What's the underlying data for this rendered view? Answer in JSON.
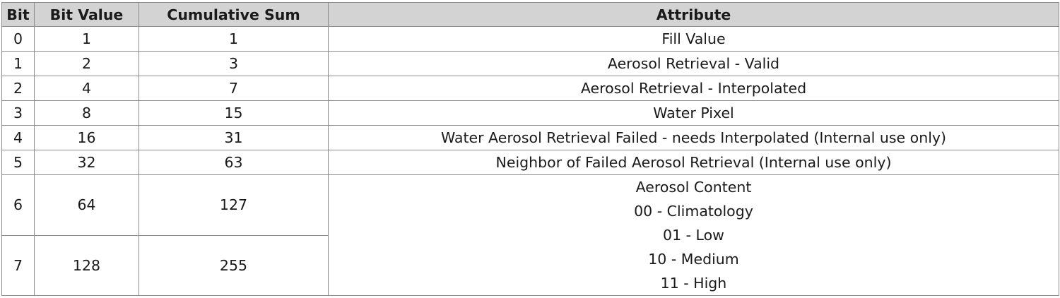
{
  "headers": [
    "Bit",
    "Bit Value",
    "Cumulative Sum",
    "Attribute"
  ],
  "rows": [
    {
      "bit": "0",
      "value": "1",
      "sum": "1",
      "attribute": "Fill Value"
    },
    {
      "bit": "1",
      "value": "2",
      "sum": "3",
      "attribute": "Aerosol Retrieval - Valid"
    },
    {
      "bit": "2",
      "value": "4",
      "sum": "7",
      "attribute": "Aerosol Retrieval - Interpolated"
    },
    {
      "bit": "3",
      "value": "8",
      "sum": "15",
      "attribute": "Water Pixel"
    },
    {
      "bit": "4",
      "value": "16",
      "sum": "31",
      "attribute": "Water Aerosol Retrieval Failed - needs Interpolated (Internal use only)"
    },
    {
      "bit": "5",
      "value": "32",
      "sum": "63",
      "attribute": "Neighbor of Failed Aerosol Retrieval (Internal use only)"
    },
    {
      "bit": "6",
      "value": "64",
      "sum": "127"
    },
    {
      "bit": "7",
      "value": "128",
      "sum": "255"
    }
  ],
  "merged_attribute": [
    "Aerosol Content",
    "00 - Climatology",
    "01 - Low",
    "10 - Medium",
    "11 - High"
  ],
  "colors": {
    "header_background": "#d3d3d3",
    "border": "#8c8c8c"
  }
}
